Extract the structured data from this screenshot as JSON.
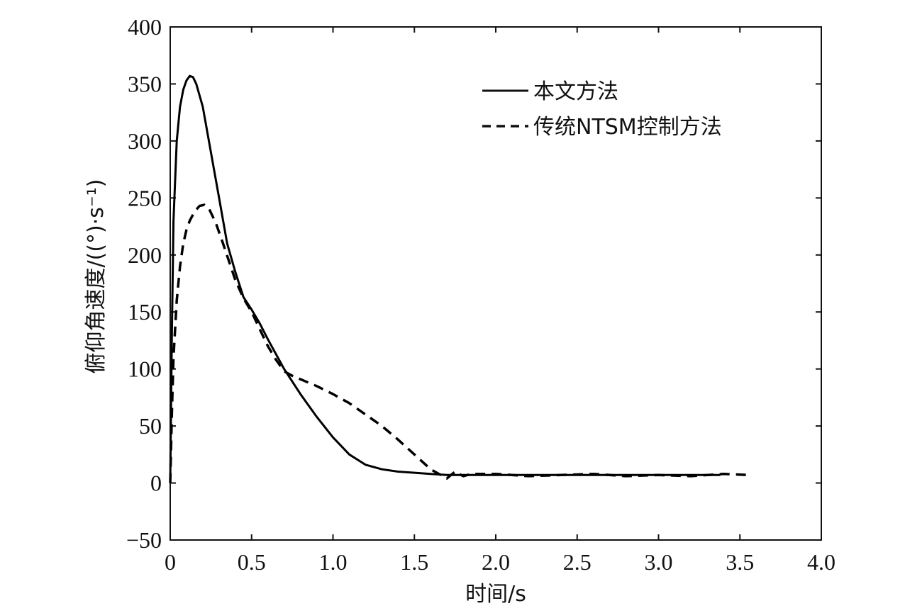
{
  "chart_data": {
    "type": "line",
    "xlabel": "时间/s",
    "ylabel": "俯仰角速度/((°)·s⁻¹)",
    "xlim": [
      0,
      4.0
    ],
    "ylim": [
      -50,
      400
    ],
    "xticks": [
      "0",
      "0.5",
      "1.0",
      "1.5",
      "2.0",
      "2.5",
      "3.0",
      "3.5",
      "4.0"
    ],
    "yticks": [
      "400",
      "350",
      "300",
      "250",
      "200",
      "150",
      "100",
      "50",
      "0",
      "−50"
    ],
    "xtick_values": [
      0,
      0.5,
      1.0,
      1.5,
      2.0,
      2.5,
      3.0,
      3.5,
      4.0
    ],
    "ytick_values": [
      400,
      350,
      300,
      250,
      200,
      150,
      100,
      50,
      0,
      -50
    ],
    "grid": false,
    "legend_position": "top-right",
    "series": [
      {
        "name": "本文方法",
        "style": "solid",
        "color": "#000000",
        "x": [
          0,
          0.01,
          0.02,
          0.04,
          0.06,
          0.08,
          0.1,
          0.12,
          0.14,
          0.16,
          0.2,
          0.25,
          0.3,
          0.35,
          0.4,
          0.45,
          0.5,
          0.55,
          0.6,
          0.7,
          0.8,
          0.9,
          1.0,
          1.1,
          1.2,
          1.3,
          1.4,
          1.5,
          1.6,
          1.7,
          2.0,
          2.5,
          3.0,
          3.38
        ],
        "y": [
          0,
          130,
          230,
          300,
          330,
          345,
          353,
          357,
          356,
          350,
          330,
          290,
          250,
          210,
          185,
          163,
          152,
          140,
          126,
          100,
          78,
          58,
          40,
          25,
          16,
          12,
          10,
          9,
          8,
          7,
          7,
          7,
          7,
          7
        ]
      },
      {
        "name": "传统NTSM控制方法",
        "style": "dashed",
        "color": "#000000",
        "x": [
          0,
          0.01,
          0.02,
          0.04,
          0.06,
          0.08,
          0.1,
          0.12,
          0.15,
          0.18,
          0.21,
          0.24,
          0.28,
          0.32,
          0.36,
          0.4,
          0.45,
          0.5,
          0.55,
          0.6,
          0.65,
          0.7,
          0.75,
          0.8,
          0.9,
          1.0,
          1.1,
          1.2,
          1.3,
          1.4,
          1.5,
          1.6,
          1.7,
          1.75,
          1.8,
          1.85,
          2.0,
          2.2,
          2.4,
          2.6,
          2.8,
          3.0,
          3.2,
          3.4,
          3.56
        ],
        "y": [
          0,
          60,
          110,
          160,
          190,
          210,
          222,
          230,
          238,
          243,
          244,
          240,
          228,
          212,
          195,
          178,
          162,
          150,
          135,
          120,
          108,
          98,
          94,
          91,
          85,
          78,
          70,
          60,
          50,
          38,
          25,
          12,
          4,
          10,
          6,
          8,
          8,
          6,
          7,
          8,
          6,
          7,
          6,
          8,
          7
        ]
      }
    ]
  }
}
